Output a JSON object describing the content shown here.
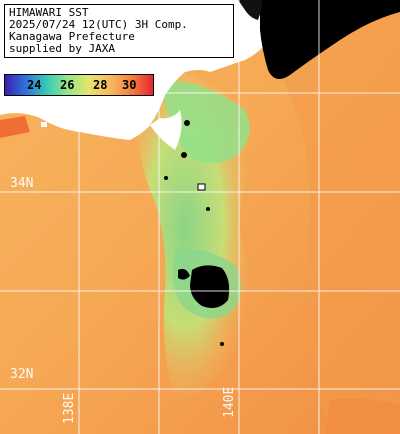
{
  "title_lines": [
    "HIMAWARI SST",
    "2025/07/24 12(UTC) 3H Comp.",
    "Kanagawa Prefecture",
    "supplied by JAXA"
  ],
  "legend": {
    "ticks": [
      "24",
      "26",
      "28",
      "30"
    ],
    "colors": [
      "#3a1fb2",
      "#2f74d9",
      "#37c9b7",
      "#94e58a",
      "#e7e56e",
      "#f8b65e",
      "#f27d3f",
      "#e6252f"
    ]
  },
  "grid": {
    "lat_labels": [
      "34N",
      "32N"
    ],
    "lon_labels": [
      "138E",
      "140E"
    ]
  },
  "colors": {
    "warm_sea": "#f5ad58",
    "cool_sea": "#a7df7d",
    "hot_sea": "#f58a3f",
    "land": "#ffffff",
    "cloud": "#000000",
    "grid": "#ffffff"
  }
}
